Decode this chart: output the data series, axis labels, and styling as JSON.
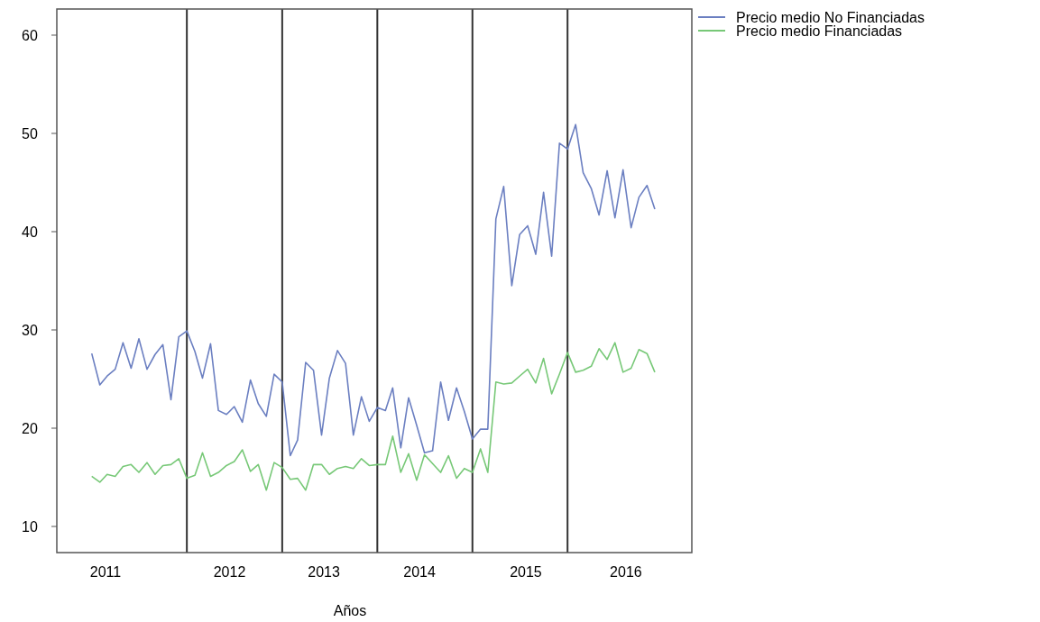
{
  "chart_data": {
    "type": "line",
    "xlabel": "Años",
    "x": [
      "2011-01",
      "2011-02",
      "2011-03",
      "2011-04",
      "2011-05",
      "2011-06",
      "2011-07",
      "2011-08",
      "2011-09",
      "2011-10",
      "2011-11",
      "2011-12",
      "2012-01",
      "2012-02",
      "2012-03",
      "2012-04",
      "2012-05",
      "2012-06",
      "2012-07",
      "2012-08",
      "2012-09",
      "2012-10",
      "2012-11",
      "2012-12",
      "2013-01",
      "2013-02",
      "2013-03",
      "2013-04",
      "2013-05",
      "2013-06",
      "2013-07",
      "2013-08",
      "2013-09",
      "2013-10",
      "2013-11",
      "2013-12",
      "2014-01",
      "2014-02",
      "2014-03",
      "2014-04",
      "2014-05",
      "2014-06",
      "2014-07",
      "2014-08",
      "2014-09",
      "2014-10",
      "2014-11",
      "2014-12",
      "2015-01",
      "2015-02",
      "2015-03",
      "2015-04",
      "2015-05",
      "2015-06",
      "2015-07",
      "2015-08",
      "2015-09",
      "2015-10",
      "2015-11",
      "2015-12",
      "2016-01",
      "2016-02",
      "2016-03",
      "2016-04",
      "2016-05",
      "2016-06",
      "2016-07",
      "2016-08",
      "2016-09",
      "2016-10",
      "2016-11",
      "2016-12"
    ],
    "series": [
      {
        "name": "Precio medio No Financiadas",
        "color": "#6b7fc1",
        "values": [
          27.6,
          24.4,
          25.3,
          26.0,
          28.7,
          26.1,
          29.1,
          26.0,
          27.5,
          28.5,
          22.9,
          29.3,
          29.9,
          27.8,
          25.1,
          28.6,
          21.8,
          21.4,
          22.2,
          20.6,
          24.9,
          22.5,
          21.2,
          25.5,
          24.7,
          17.2,
          18.8,
          26.7,
          25.9,
          19.3,
          25.1,
          27.9,
          26.6,
          19.3,
          23.2,
          20.7,
          22.1,
          21.8,
          24.1,
          18.0,
          23.1,
          20.3,
          17.5,
          17.7,
          24.7,
          20.8,
          24.1,
          21.7,
          18.9,
          19.9,
          19.9,
          41.3,
          44.6,
          34.5,
          39.7,
          40.6,
          37.7,
          44.0,
          37.5,
          49.0,
          48.4,
          50.9,
          46.0,
          44.4,
          41.7,
          46.2,
          41.4,
          46.3,
          40.4,
          43.5,
          44.7,
          42.3
        ]
      },
      {
        "name": "Precio medio Financiadas",
        "color": "#77c877",
        "values": [
          15.1,
          14.5,
          15.3,
          15.1,
          16.1,
          16.3,
          15.5,
          16.5,
          15.3,
          16.2,
          16.3,
          16.9,
          14.9,
          15.2,
          17.5,
          15.1,
          15.5,
          16.2,
          16.6,
          17.8,
          15.6,
          16.3,
          13.7,
          16.5,
          16.0,
          14.8,
          14.9,
          13.7,
          16.3,
          16.3,
          15.3,
          15.9,
          16.1,
          15.9,
          16.9,
          16.2,
          16.3,
          16.3,
          19.2,
          15.5,
          17.4,
          14.7,
          17.3,
          16.4,
          15.5,
          17.2,
          14.9,
          15.9,
          15.5,
          17.9,
          15.5,
          24.7,
          24.5,
          24.6,
          25.3,
          26.0,
          24.6,
          27.1,
          23.5,
          25.5,
          27.7,
          25.7,
          25.9,
          26.3,
          28.1,
          27.0,
          28.7,
          25.7,
          26.1,
          28.0,
          27.6,
          25.7
        ]
      }
    ],
    "xlim": [
      "2010-08-20",
      "2017-04-22"
    ],
    "xticks": [
      {
        "value": "2011-02-23",
        "label": "2011"
      },
      {
        "value": "2012-06-13",
        "label": "2012"
      },
      {
        "value": "2013-06-10",
        "label": "2013"
      },
      {
        "value": "2014-06-12",
        "label": "2014"
      },
      {
        "value": "2015-07-25",
        "label": "2015"
      },
      {
        "value": "2016-08-12",
        "label": "2016"
      }
    ],
    "ylim": [
      7.34,
      62.66
    ],
    "yticks": [
      10,
      20,
      30,
      40,
      50,
      60
    ],
    "ref_lines": [
      {
        "axis": "x",
        "value": "2012-01",
        "color": "#333333"
      },
      {
        "axis": "x",
        "value": "2013-01",
        "color": "#333333"
      },
      {
        "axis": "x",
        "value": "2014-01",
        "color": "#333333"
      },
      {
        "axis": "x",
        "value": "2015-01",
        "color": "#333333"
      },
      {
        "axis": "x",
        "value": "2016-01",
        "color": "#333333"
      }
    ],
    "legend": "right",
    "grid": false,
    "marker": "none",
    "line_style": "solid"
  }
}
